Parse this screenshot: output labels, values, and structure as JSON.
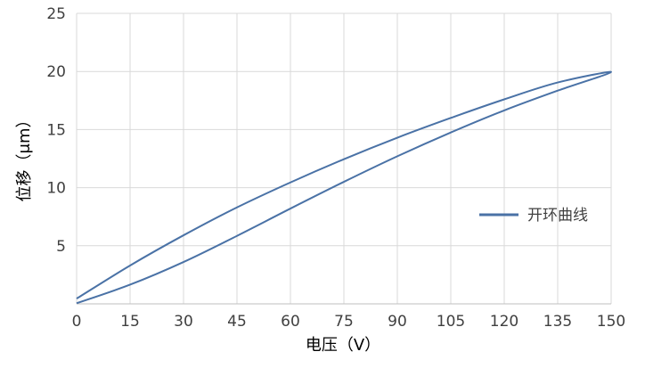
{
  "chart_data": {
    "type": "line",
    "xlabel": "电压（V）",
    "ylabel": "位移（μm）",
    "xlim": [
      0,
      150
    ],
    "ylim": [
      0,
      25
    ],
    "xticks": [
      0,
      15,
      30,
      45,
      60,
      75,
      90,
      105,
      120,
      135,
      150
    ],
    "yticks": [
      5,
      10,
      15,
      20,
      25
    ],
    "grid": true,
    "legend_position": "right",
    "series": [
      {
        "name": "开环曲线",
        "color": "#4a72a6",
        "x": [
          0,
          15,
          30,
          45,
          60,
          75,
          90,
          105,
          120,
          135,
          150,
          135,
          120,
          105,
          90,
          75,
          60,
          45,
          30,
          15,
          0
        ],
        "y": [
          0.05,
          1.65,
          3.6,
          5.85,
          8.2,
          10.5,
          12.7,
          14.75,
          16.65,
          18.35,
          19.95,
          19.05,
          17.6,
          16.0,
          14.3,
          12.45,
          10.45,
          8.3,
          5.9,
          3.3,
          0.45
        ]
      }
    ]
  }
}
